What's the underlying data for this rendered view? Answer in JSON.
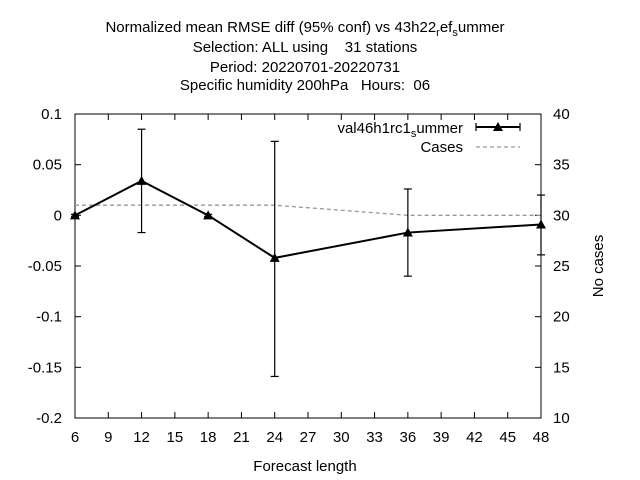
{
  "chart_data": {
    "type": "line",
    "title": {
      "line1": {
        "main": "Normalized mean RMSE diff (95% conf) vs 43h22",
        "sub1": "r",
        "mid": "ef",
        "sub2": "s",
        "tail": "ummer"
      },
      "line2": "Selection: ALL using    31 stations",
      "line3": "Period: 20220701-20220731",
      "line4": "Specific humidity 200hPa   Hours:  06"
    },
    "xlabel": "Forecast length",
    "ylabel": "",
    "y2label": "No cases",
    "xlim": [
      6,
      48
    ],
    "ylim": [
      -0.2,
      0.1
    ],
    "y2lim": [
      10,
      40
    ],
    "xticks": [
      6,
      9,
      12,
      15,
      18,
      21,
      24,
      27,
      30,
      33,
      36,
      39,
      42,
      45,
      48
    ],
    "yticks": [
      0.1,
      0.05,
      0,
      -0.05,
      -0.1,
      -0.15,
      -0.2
    ],
    "ytick_labels": [
      "0.1",
      "0.05",
      "0",
      "-0.05",
      "-0.1",
      "-0.15",
      "-0.2"
    ],
    "y2ticks": [
      40,
      35,
      30,
      25,
      20,
      15,
      10
    ],
    "grid": false,
    "legend_position": "top-right",
    "series": [
      {
        "name": "val46h1rc1",
        "name_sub": "s",
        "name_tail": "ummer",
        "color": "#000000",
        "marker": "triangle",
        "x": [
          6,
          12,
          18,
          24,
          36,
          48
        ],
        "y": [
          0.0,
          0.034,
          0.0,
          -0.042,
          -0.017,
          -0.009
        ],
        "err_low": [
          -0.001,
          -0.017,
          -0.001,
          -0.159,
          -0.06,
          -0.039
        ],
        "err_high": [
          0.001,
          0.085,
          0.001,
          0.073,
          0.026,
          0.02
        ]
      },
      {
        "name": "Cases",
        "color": "#999999",
        "dashed": true,
        "axis": "y2",
        "x": [
          6,
          12,
          18,
          24,
          36,
          48
        ],
        "y": [
          31,
          31,
          31,
          31,
          30,
          30
        ]
      }
    ]
  }
}
